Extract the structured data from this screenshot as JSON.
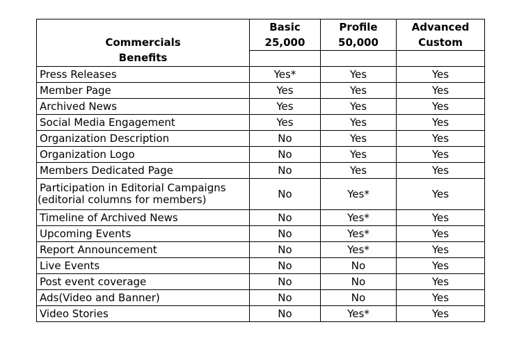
{
  "header": {
    "commercials_label": "Commercials",
    "benefits_label": "Benefits",
    "plans": [
      {
        "name": "Basic",
        "price": "25,000"
      },
      {
        "name": "Profile",
        "price": "50,000"
      },
      {
        "name": "Advanced",
        "price": "Custom"
      }
    ]
  },
  "rows": [
    {
      "benefit": "Press Releases",
      "basic": "Yes*",
      "profile": "Yes",
      "advanced": "Yes"
    },
    {
      "benefit": "Member Page",
      "basic": "Yes",
      "profile": "Yes",
      "advanced": "Yes"
    },
    {
      "benefit": "Archived News",
      "basic": "Yes",
      "profile": "Yes",
      "advanced": "Yes"
    },
    {
      "benefit": "Social Media Engagement",
      "basic": "Yes",
      "profile": "Yes",
      "advanced": "Yes"
    },
    {
      "benefit": "Organization Description",
      "basic": "No",
      "profile": "Yes",
      "advanced": "Yes"
    },
    {
      "benefit": "Organization Logo",
      "basic": "No",
      "profile": "Yes",
      "advanced": "Yes"
    },
    {
      "benefit": "Members Dedicated Page",
      "basic": "No",
      "profile": "Yes",
      "advanced": "Yes"
    },
    {
      "benefit": "Participation in Editorial Campaigns",
      "benefit_line2": "(editorial columns for members)",
      "basic": "No",
      "profile": "Yes*",
      "advanced": "Yes"
    },
    {
      "benefit": "Timeline of Archived News",
      "basic": "No",
      "profile": "Yes*",
      "advanced": "Yes"
    },
    {
      "benefit": "Upcoming Events",
      "basic": "No",
      "profile": "Yes*",
      "advanced": "Yes"
    },
    {
      "benefit": "Report Announcement",
      "basic": "No",
      "profile": "Yes*",
      "advanced": "Yes"
    },
    {
      "benefit": "Live Events",
      "basic": "No",
      "profile": "No",
      "advanced": "Yes"
    },
    {
      "benefit": "Post event coverage",
      "basic": "No",
      "profile": "No",
      "advanced": "Yes"
    },
    {
      "benefit": "Ads(Video and Banner)",
      "basic": "No",
      "profile": "No",
      "advanced": "Yes"
    },
    {
      "benefit": "Video Stories",
      "basic": "No",
      "profile": "Yes*",
      "advanced": "Yes"
    }
  ]
}
